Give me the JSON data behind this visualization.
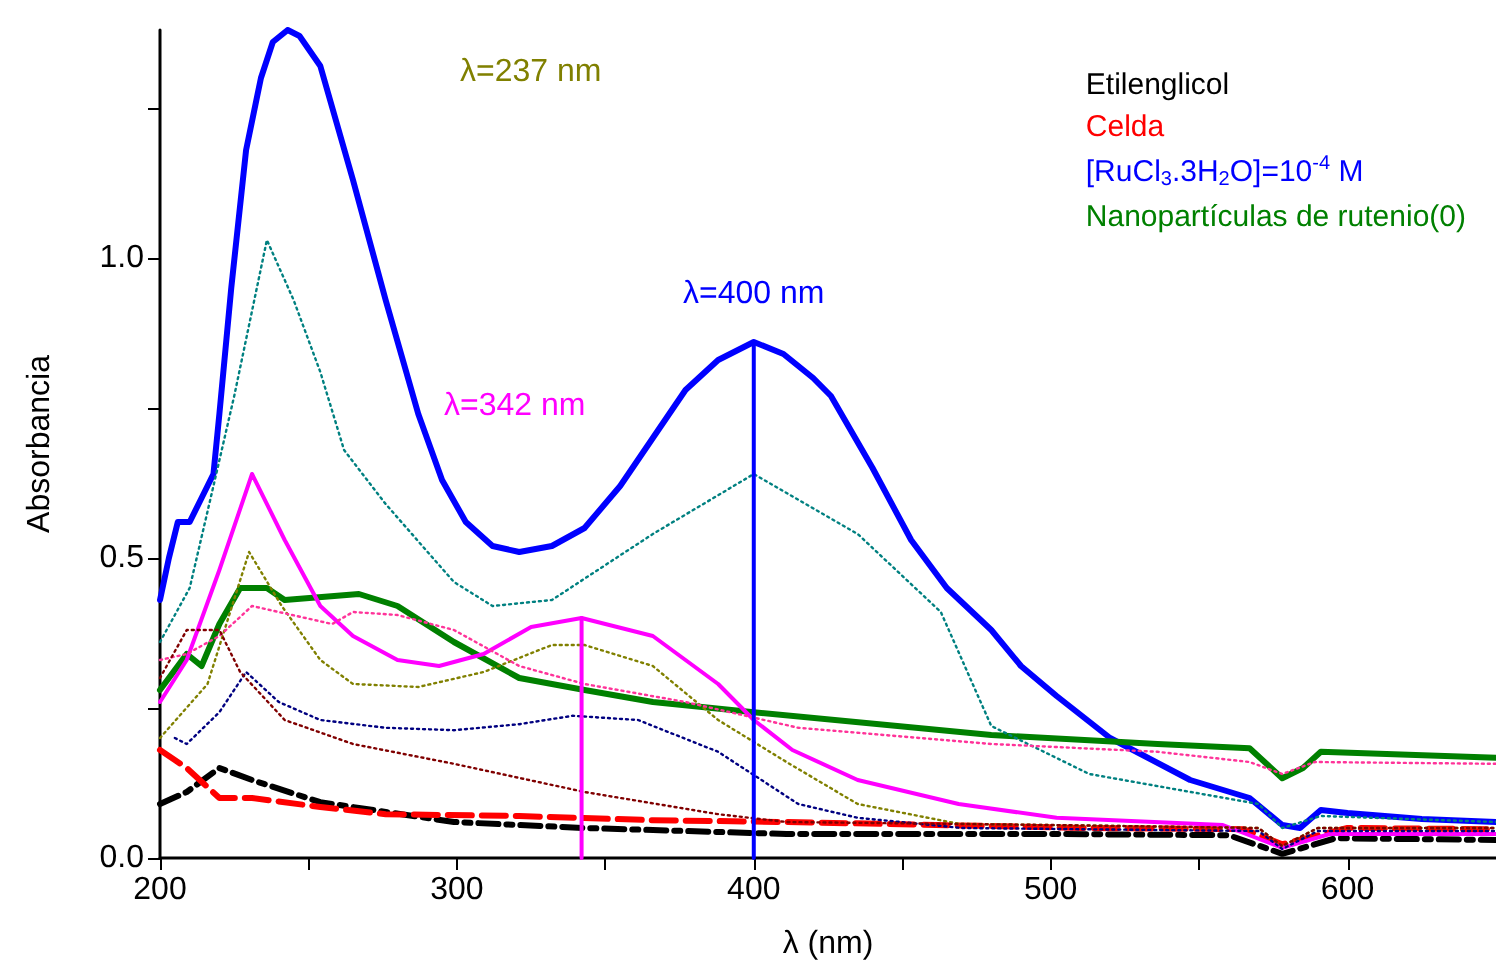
{
  "chart_data": {
    "type": "line",
    "xlabel": "λ (nm)",
    "ylabel": "Absorbancia",
    "xlim": [
      200,
      650
    ],
    "xticks": [
      200,
      {
        "value": 250,
        "label": null
      },
      300,
      {
        "value": 350,
        "label": null
      },
      400,
      {
        "value": 450,
        "label": null
      },
      500,
      {
        "value": 550,
        "label": null
      },
      600
    ],
    "ylim": [
      0,
      1.38
    ],
    "yticks": [
      {
        "value": 0,
        "label": "0.0"
      },
      {
        "value": 0.25,
        "label": null
      },
      0.5,
      {
        "value": 0.75,
        "label": null
      },
      {
        "value": 1,
        "label": "1.0"
      },
      {
        "value": 1.25,
        "label": null
      }
    ],
    "grid": false,
    "legend": "top right",
    "marker": "none",
    "series": [
      {
        "name": "Etilenglicol",
        "color": "#000000",
        "line_style": "dashdot",
        "x": [
          200,
          209,
          220,
          231,
          254,
          299,
          343,
          411,
          500,
          560,
          578,
          596,
          650
        ],
        "values": [
          0.09,
          0.11,
          0.15,
          0.13,
          0.093,
          0.06,
          0.05,
          0.04,
          0.04,
          0.038,
          0.007,
          0.033,
          0.03
        ]
      },
      {
        "name": "Celda",
        "color": "#ff0000",
        "line_style": "dashed",
        "x": [
          200,
          209,
          220,
          231,
          254,
          276,
          321,
          366,
          411,
          513,
          565,
          578,
          600,
          650
        ],
        "values": [
          0.18,
          0.15,
          0.1,
          0.1,
          0.085,
          0.073,
          0.07,
          0.063,
          0.06,
          0.05,
          0.048,
          0.023,
          0.05,
          0.048
        ]
      },
      {
        "name": "[RuCl$_{3}$.3H$_{2}$O]=10$^{-4}$ M",
        "color": "#0000ff",
        "line_style": "solid",
        "x": [
          200,
          203,
          206,
          210,
          214,
          218,
          220,
          224,
          229,
          234,
          238,
          243,
          247,
          254,
          265,
          276,
          287,
          295,
          303,
          312,
          321,
          332,
          343,
          355,
          366,
          377,
          388,
          400,
          410,
          420,
          426,
          440,
          453,
          465,
          480,
          490,
          502,
          520,
          547,
          567,
          578,
          584,
          591,
          600,
          625,
          650
        ],
        "values": [
          0.43,
          0.5,
          0.56,
          0.56,
          0.6,
          0.64,
          0.74,
          0.95,
          1.18,
          1.3,
          1.36,
          1.38,
          1.37,
          1.32,
          1.13,
          0.93,
          0.74,
          0.63,
          0.56,
          0.52,
          0.51,
          0.52,
          0.55,
          0.62,
          0.7,
          0.78,
          0.83,
          0.86,
          0.84,
          0.8,
          0.77,
          0.65,
          0.53,
          0.45,
          0.38,
          0.32,
          0.27,
          0.2,
          0.13,
          0.1,
          0.055,
          0.05,
          0.08,
          0.075,
          0.065,
          0.06
        ]
      },
      {
        "name": "Nanopartículas de rutenio(0)",
        "color": "#008000",
        "line_style": "solid",
        "x": [
          200,
          209,
          214,
          220,
          227,
          236,
          242,
          267,
          280,
          299,
          321,
          343,
          366,
          400,
          480,
          536,
          567,
          578,
          585,
          591,
          650
        ],
        "values": [
          0.28,
          0.34,
          0.32,
          0.39,
          0.45,
          0.45,
          0.43,
          0.44,
          0.42,
          0.36,
          0.3,
          0.28,
          0.26,
          0.243,
          0.205,
          0.19,
          0.183,
          0.133,
          0.15,
          0.177,
          0.167
        ]
      },
      {
        "color": "#ff00ff",
        "line_style": "solid",
        "x": [
          200,
          209,
          220,
          231,
          242,
          254,
          265,
          280,
          294,
          309,
          325,
          342,
          366,
          388,
          400,
          413,
          435,
          469,
          502,
          558,
          578,
          594,
          650
        ],
        "values": [
          0.26,
          0.33,
          0.48,
          0.64,
          0.53,
          0.42,
          0.37,
          0.33,
          0.32,
          0.34,
          0.385,
          0.4,
          0.37,
          0.29,
          0.23,
          0.18,
          0.13,
          0.09,
          0.067,
          0.055,
          0.017,
          0.04,
          0.04
        ]
      },
      {
        "color": "#008080",
        "line_style": "dotted",
        "x": [
          200,
          210,
          218,
          225,
          236,
          245,
          254,
          262,
          276,
          299,
          312,
          332,
          366,
          400,
          435,
          463,
          480,
          513,
          570,
          578,
          591,
          650
        ],
        "values": [
          0.36,
          0.45,
          0.62,
          0.77,
          1.03,
          0.93,
          0.81,
          0.68,
          0.59,
          0.46,
          0.42,
          0.43,
          0.54,
          0.64,
          0.54,
          0.41,
          0.22,
          0.14,
          0.09,
          0.05,
          0.07,
          0.06
        ]
      },
      {
        "color": "#808000",
        "line_style": "dotted",
        "x": [
          200,
          216,
          223,
          230,
          241,
          254,
          265,
          287,
          309,
          332,
          343,
          366,
          388,
          411,
          435,
          469,
          570,
          578,
          590,
          650
        ],
        "values": [
          0.2,
          0.29,
          0.4,
          0.51,
          0.42,
          0.33,
          0.29,
          0.285,
          0.31,
          0.355,
          0.355,
          0.32,
          0.23,
          0.16,
          0.09,
          0.057,
          0.05,
          0.02,
          0.05,
          0.05
        ]
      },
      {
        "color": "#ff3399",
        "line_style": "dotted",
        "x": [
          200,
          209,
          220,
          231,
          258,
          265,
          280,
          299,
          321,
          343,
          377,
          415,
          480,
          536,
          567,
          578,
          589,
          650
        ],
        "values": [
          0.33,
          0.34,
          0.37,
          0.42,
          0.39,
          0.41,
          0.405,
          0.38,
          0.32,
          0.29,
          0.26,
          0.217,
          0.19,
          0.177,
          0.16,
          0.14,
          0.16,
          0.157
        ]
      },
      {
        "color": "#000080",
        "line_style": "dotted",
        "x": [
          205,
          209,
          220,
          229,
          240,
          254,
          276,
          299,
          321,
          339,
          361,
          388,
          415,
          435,
          470,
          570,
          578,
          590,
          650
        ],
        "values": [
          0.2,
          0.19,
          0.243,
          0.31,
          0.26,
          0.23,
          0.217,
          0.213,
          0.223,
          0.237,
          0.23,
          0.177,
          0.09,
          0.067,
          0.05,
          0.045,
          0.015,
          0.045,
          0.045
        ]
      },
      {
        "color": "#800000",
        "line_style": "dotted",
        "x": [
          200,
          209,
          220,
          227,
          242,
          265,
          299,
          343,
          388,
          411,
          500,
          570,
          578,
          590,
          650
        ],
        "values": [
          0.3,
          0.38,
          0.38,
          0.31,
          0.23,
          0.19,
          0.157,
          0.11,
          0.073,
          0.06,
          0.055,
          0.05,
          0.02,
          0.05,
          0.05
        ]
      },
      {
        "color": "#ff00ff",
        "line_style": "solid",
        "x": [
          342,
          342
        ],
        "values": [
          0,
          0.4
        ]
      },
      {
        "color": "#0000ff",
        "line_style": "solid",
        "x": [
          400,
          400
        ],
        "values": [
          0,
          0.86
        ]
      }
    ],
    "annotations": [
      "λ=237 nm",
      "λ=342 nm",
      {
        "text": "λ=400 nm",
        "x": 400,
        "y": 0.86
      }
    ]
  }
}
